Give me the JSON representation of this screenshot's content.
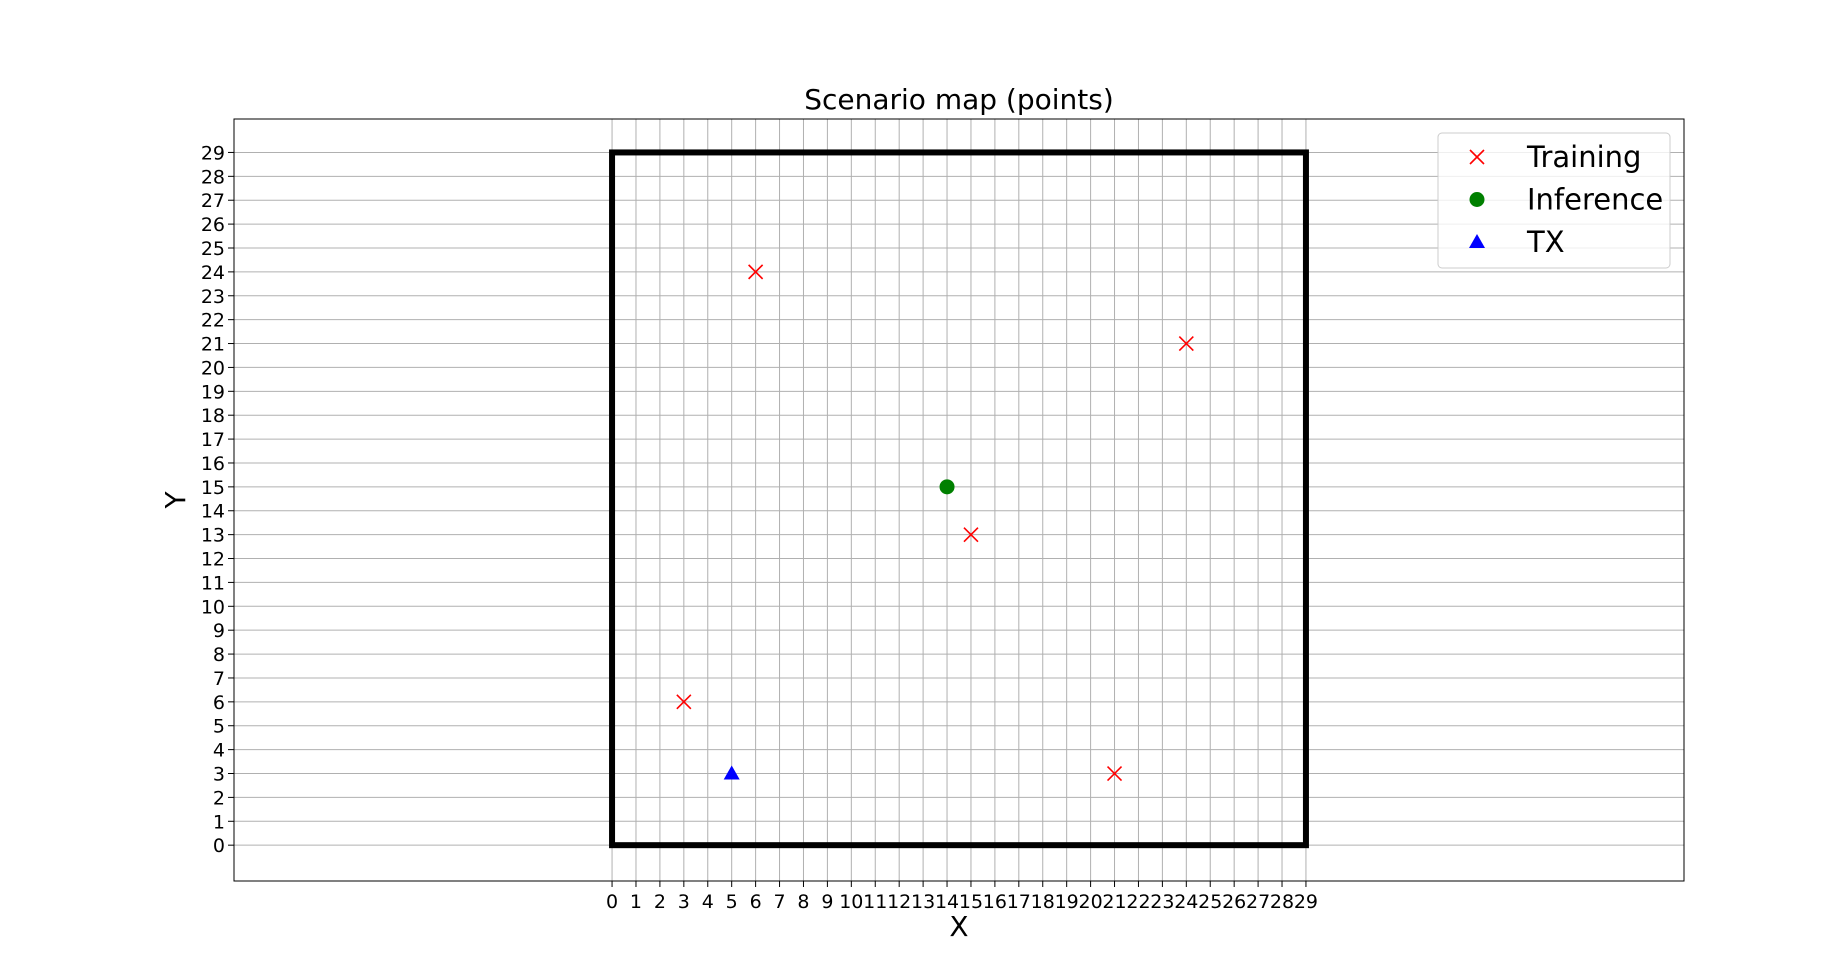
{
  "chart_data": {
    "type": "scatter",
    "title": "Scenario map (points)",
    "xlabel": "X",
    "ylabel": "Y",
    "xlim": [
      -15.8,
      44.8
    ],
    "ylim": [
      -1.5,
      30.4
    ],
    "xticks": [
      0,
      1,
      2,
      3,
      4,
      5,
      6,
      7,
      8,
      9,
      10,
      11,
      12,
      13,
      14,
      15,
      16,
      17,
      18,
      19,
      20,
      21,
      22,
      23,
      24,
      25,
      26,
      27,
      28,
      29
    ],
    "yticks": [
      0,
      1,
      2,
      3,
      4,
      5,
      6,
      7,
      8,
      9,
      10,
      11,
      12,
      13,
      14,
      15,
      16,
      17,
      18,
      19,
      20,
      21,
      22,
      23,
      24,
      25,
      26,
      27,
      28,
      29
    ],
    "grid": true,
    "area_boundary": {
      "x": [
        0,
        29
      ],
      "y": [
        0,
        29
      ]
    },
    "legend_position": "top-right",
    "series": [
      {
        "name": "Training",
        "marker": "x",
        "color": "#ff0000",
        "points": [
          [
            6,
            24
          ],
          [
            24,
            21
          ],
          [
            15,
            13
          ],
          [
            3,
            6
          ],
          [
            21,
            3
          ]
        ]
      },
      {
        "name": "Inference",
        "marker": "circle",
        "color": "#008000",
        "points": [
          [
            14,
            15
          ]
        ]
      },
      {
        "name": "TX",
        "marker": "triangle",
        "color": "#0000ff",
        "points": [
          [
            5,
            3
          ]
        ]
      }
    ]
  }
}
